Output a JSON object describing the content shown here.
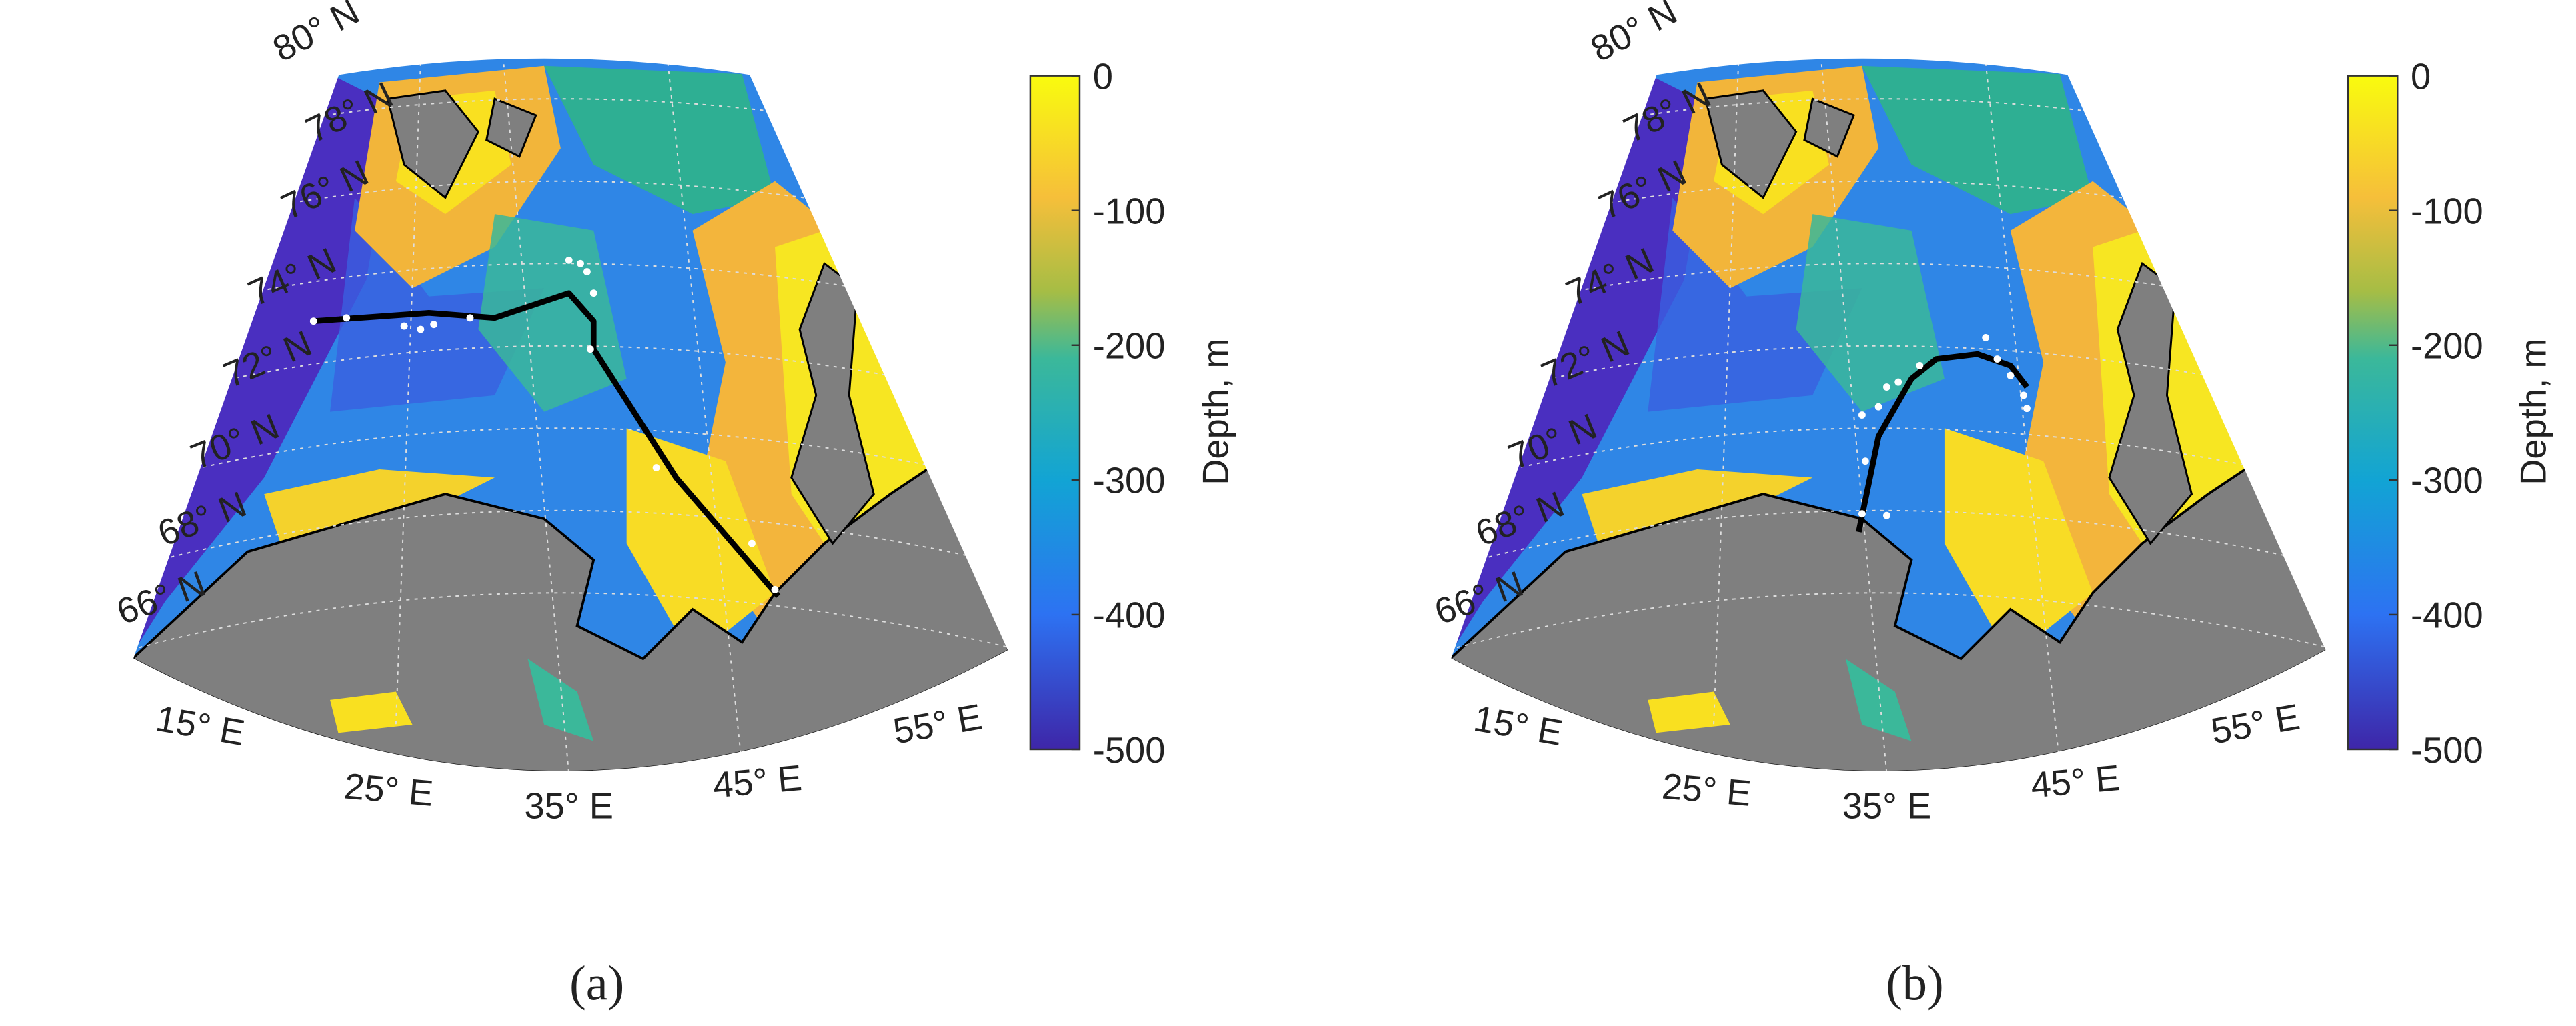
{
  "panels": [
    {
      "caption": "(a)",
      "lat_labels": [
        "80° N",
        "78° N",
        "76° N",
        "74° N",
        "72° N",
        "70° N",
        "68° N",
        "66° N"
      ],
      "lon_labels": [
        "15° E",
        "25° E",
        "35° E",
        "45° E",
        "55° E"
      ],
      "colorbar": {
        "label": "Depth, m",
        "lim": [
          -500,
          0
        ],
        "ticks": [
          0,
          -100,
          -200,
          -300,
          -400,
          -500
        ]
      }
    },
    {
      "caption": "(b)",
      "lat_labels": [
        "80° N",
        "78° N",
        "76° N",
        "74° N",
        "72° N",
        "70° N",
        "68° N",
        "66° N"
      ],
      "lon_labels": [
        "15° E",
        "25° E",
        "35° E",
        "45° E",
        "55° E"
      ],
      "colorbar": {
        "label": "Depth, m",
        "lim": [
          -500,
          0
        ],
        "ticks": [
          0,
          -100,
          -200,
          -300,
          -400,
          -500
        ]
      }
    }
  ]
}
